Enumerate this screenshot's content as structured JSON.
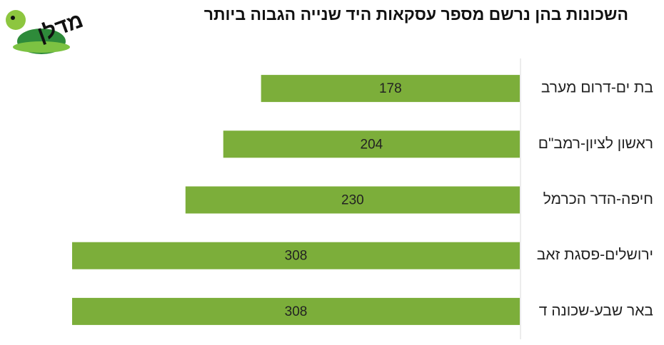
{
  "logo_text": "מדלן",
  "chart_data": {
    "type": "bar",
    "orientation": "horizontal",
    "title": "השכונות בהן נרשם מספר עסקאות היד שנייה הגבוה ביותר",
    "categories": [
      "בת ים-דרום מערב",
      "ראשון לציון-רמב\"ם",
      "חיפה-הדר הכרמל",
      "ירושלים-פסגת זאב",
      "באר שבע-שכונה ד"
    ],
    "values": [
      178,
      204,
      230,
      308,
      308
    ],
    "color": "#7cae3a"
  }
}
